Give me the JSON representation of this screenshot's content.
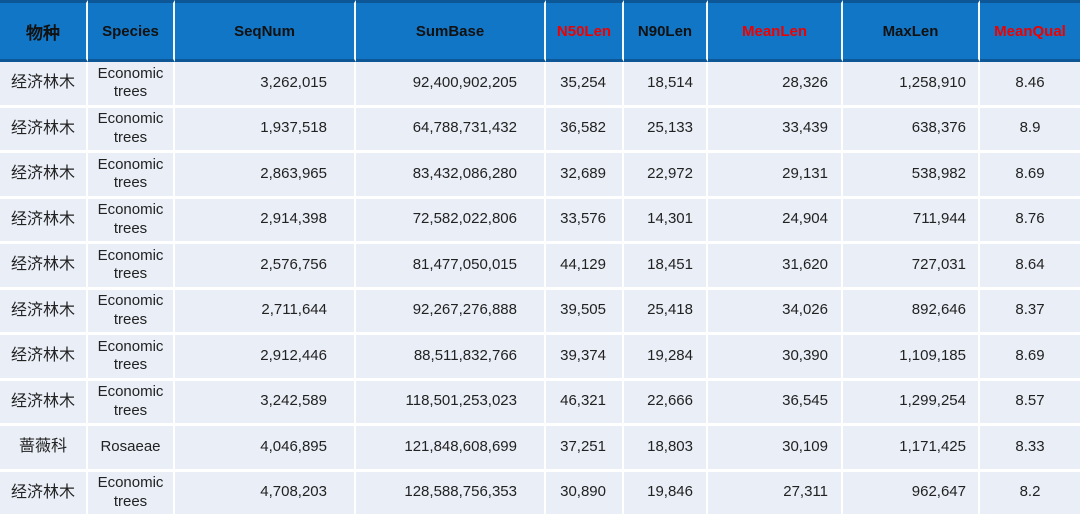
{
  "colors": {
    "header_bg": "#1276c6",
    "header_accent_line": "#0d5796",
    "header_text_black": "#111111",
    "header_text_red": "#ee0000",
    "row_bg": "#e9eef7",
    "grid_line": "#ffffff",
    "body_text": "#222222",
    "page_bg": "#ffffff"
  },
  "chart_data": {
    "type": "table",
    "title": "",
    "legend": null,
    "columns": [
      {
        "id": "species-cn",
        "label": "物种",
        "header_color": "#111111"
      },
      {
        "id": "species-en",
        "label": "Species",
        "header_color": "#111111"
      },
      {
        "id": "seqnum",
        "label": "SeqNum",
        "header_color": "#111111"
      },
      {
        "id": "sumbase",
        "label": "SumBase",
        "header_color": "#111111"
      },
      {
        "id": "n50len",
        "label": "N50Len",
        "header_color": "#ee0000"
      },
      {
        "id": "n90len",
        "label": "N90Len",
        "header_color": "#111111"
      },
      {
        "id": "meanlen",
        "label": "MeanLen",
        "header_color": "#ee0000"
      },
      {
        "id": "maxlen",
        "label": "MaxLen",
        "header_color": "#111111"
      },
      {
        "id": "meanqual",
        "label": "MeanQual",
        "header_color": "#ee0000"
      }
    ],
    "rows": [
      [
        "经济林木",
        "Economic trees",
        "3,262,015",
        "92,400,902,205",
        "35,254",
        "18,514",
        "28,326",
        "1,258,910",
        "8.46"
      ],
      [
        "经济林木",
        "Economic trees",
        "1,937,518",
        "64,788,731,432",
        "36,582",
        "25,133",
        "33,439",
        "638,376",
        "8.9"
      ],
      [
        "经济林木",
        "Economic trees",
        "2,863,965",
        "83,432,086,280",
        "32,689",
        "22,972",
        "29,131",
        "538,982",
        "8.69"
      ],
      [
        "经济林木",
        "Economic trees",
        "2,914,398",
        "72,582,022,806",
        "33,576",
        "14,301",
        "24,904",
        "711,944",
        "8.76"
      ],
      [
        "经济林木",
        "Economic trees",
        "2,576,756",
        "81,477,050,015",
        "44,129",
        "18,451",
        "31,620",
        "727,031",
        "8.64"
      ],
      [
        "经济林木",
        "Economic trees",
        "2,711,644",
        "92,267,276,888",
        "39,505",
        "25,418",
        "34,026",
        "892,646",
        "8.37"
      ],
      [
        "经济林木",
        "Economic trees",
        "2,912,446",
        "88,511,832,766",
        "39,374",
        "19,284",
        "30,390",
        "1,109,185",
        "8.69"
      ],
      [
        "经济林木",
        "Economic trees",
        "3,242,589",
        "118,501,253,023",
        "46,321",
        "22,666",
        "36,545",
        "1,299,254",
        "8.57"
      ],
      [
        "蔷薇科",
        "Rosaeae",
        "4,046,895",
        "121,848,608,699",
        "37,251",
        "18,803",
        "30,109",
        "1,171,425",
        "8.33"
      ],
      [
        "经济林木",
        "Economic trees",
        "4,708,203",
        "128,588,756,353",
        "30,890",
        "19,846",
        "27,311",
        "962,647",
        "8.2"
      ]
    ]
  }
}
